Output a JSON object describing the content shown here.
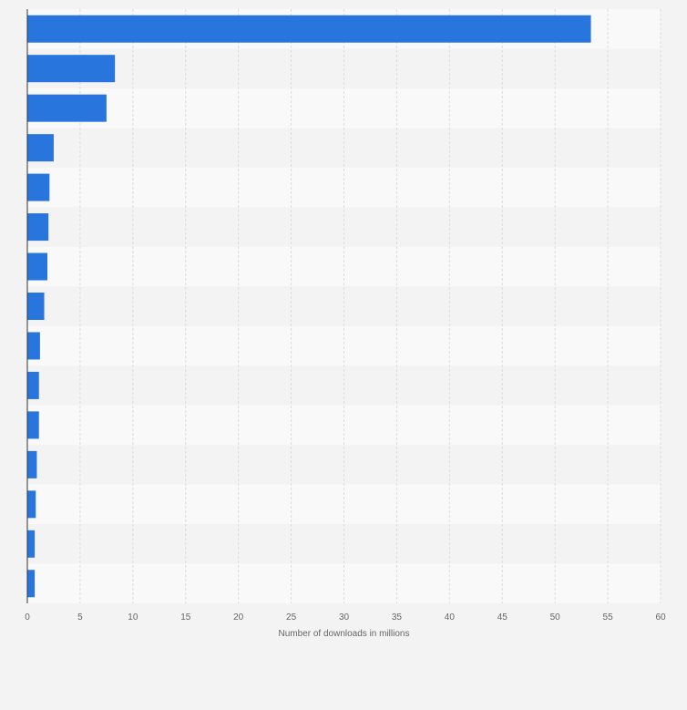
{
  "chart_data": {
    "type": "bar",
    "orientation": "horizontal",
    "categories": [
      "",
      "",
      "",
      "",
      "",
      "",
      "",
      "",
      "",
      "",
      "",
      "",
      "",
      "",
      ""
    ],
    "values": [
      53.4,
      8.3,
      7.5,
      2.5,
      2.1,
      2.0,
      1.9,
      1.6,
      1.2,
      1.1,
      1.1,
      0.9,
      0.8,
      0.7,
      0.7
    ],
    "title": "",
    "xlabel": "Number of downloads in millions",
    "ylabel": "",
    "xlim": [
      0,
      60
    ],
    "xticks": [
      0,
      5,
      10,
      15,
      20,
      25,
      30,
      35,
      40,
      45,
      50,
      55,
      60
    ],
    "grid": true,
    "legend": "none",
    "colors": {
      "bar": "#2876dd",
      "band_light": "#f9f9f9",
      "band_dark": "#f3f3f3",
      "grid": "#dddddd",
      "axis": "#333333"
    }
  }
}
